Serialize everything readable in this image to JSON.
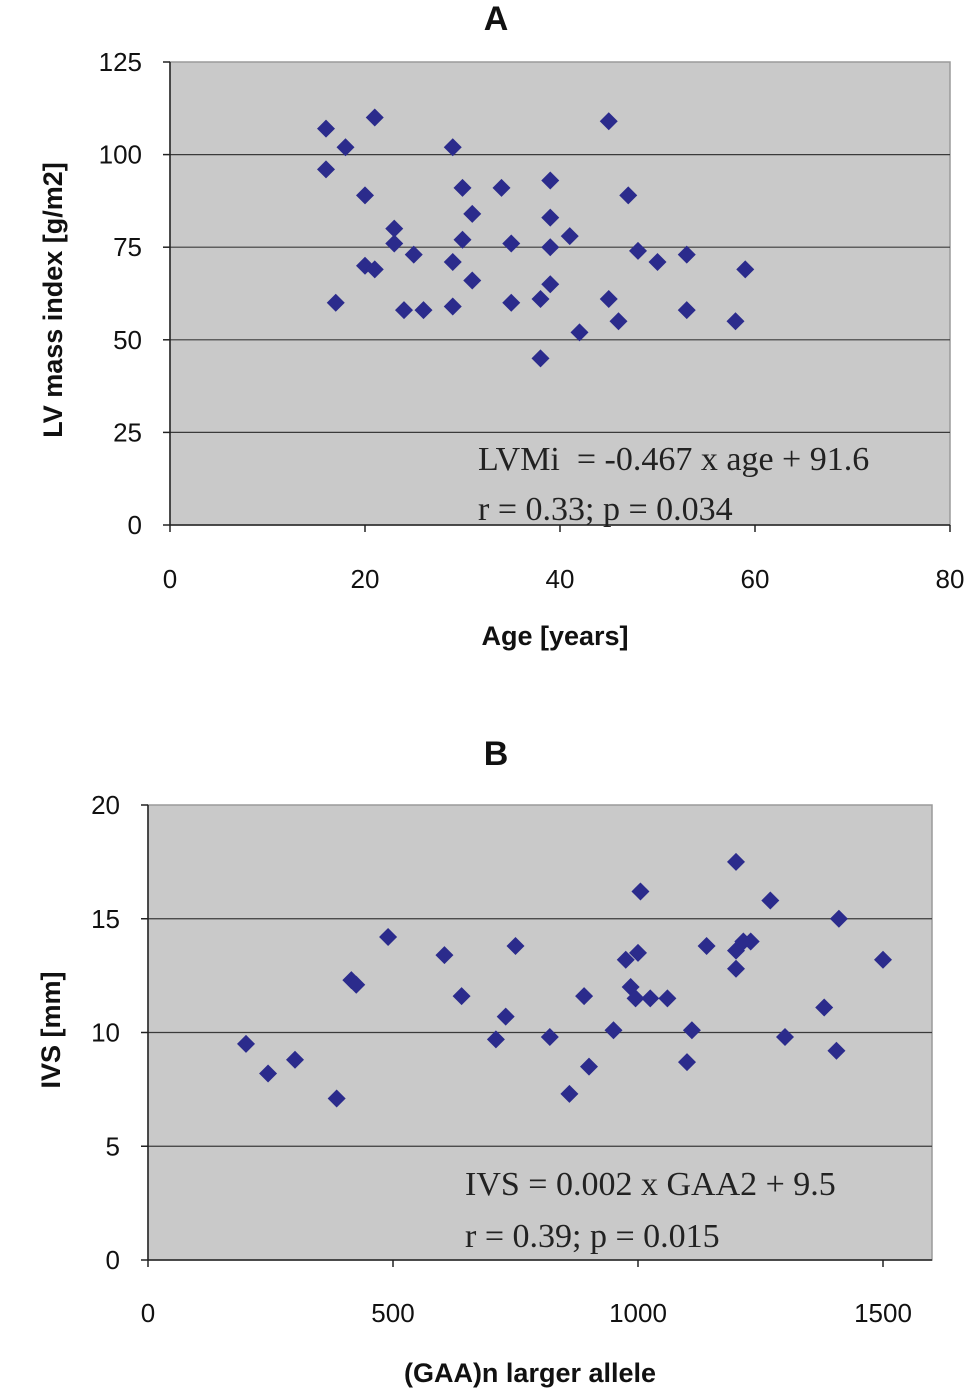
{
  "chart_data": [
    {
      "type": "scatter",
      "title": "A",
      "xlabel": "Age [years]",
      "ylabel": "LV mass index [g/m2]",
      "xlim": [
        0,
        80
      ],
      "ylim": [
        0,
        125
      ],
      "xticks": [
        "0",
        "20",
        "40",
        "60",
        "80"
      ],
      "yticks": [
        "0",
        "25",
        "50",
        "75",
        "100",
        "125"
      ],
      "grid": "horizontal",
      "annotations": [
        "LVMi  = -0.467 x age + 91.6",
        "r = 0.33; p = 0.034"
      ],
      "marker_color": "#2b2b8c",
      "background_color": "#c9c9c9",
      "points": [
        [
          16,
          107
        ],
        [
          16,
          96
        ],
        [
          18,
          102
        ],
        [
          21,
          110
        ],
        [
          17,
          60
        ],
        [
          20,
          89
        ],
        [
          20,
          70
        ],
        [
          21,
          69
        ],
        [
          23,
          80
        ],
        [
          23,
          76
        ],
        [
          25,
          73
        ],
        [
          24,
          58
        ],
        [
          26,
          58
        ],
        [
          29,
          102
        ],
        [
          30,
          91
        ],
        [
          31,
          84
        ],
        [
          30,
          77
        ],
        [
          29,
          71
        ],
        [
          31,
          66
        ],
        [
          29,
          59
        ],
        [
          34,
          91
        ],
        [
          35,
          76
        ],
        [
          35,
          60
        ],
        [
          38,
          61
        ],
        [
          38,
          45
        ],
        [
          39,
          93
        ],
        [
          39,
          83
        ],
        [
          39,
          75
        ],
        [
          39,
          65
        ],
        [
          41,
          78
        ],
        [
          42,
          52
        ],
        [
          45,
          109
        ],
        [
          47,
          89
        ],
        [
          48,
          74
        ],
        [
          45,
          61
        ],
        [
          46,
          55
        ],
        [
          50,
          71
        ],
        [
          53,
          73
        ],
        [
          53,
          58
        ],
        [
          58,
          55
        ],
        [
          59,
          69
        ]
      ]
    },
    {
      "type": "scatter",
      "title": "B",
      "xlabel": "(GAA)n larger allele",
      "ylabel": "IVS [mm]",
      "xlim": [
        0,
        1600
      ],
      "ylim": [
        0,
        20
      ],
      "xticks": [
        "0",
        "500",
        "1000",
        "1500"
      ],
      "yticks": [
        "0",
        "5",
        "10",
        "15",
        "20"
      ],
      "grid": "horizontal",
      "annotations": [
        "IVS = 0.002 x GAA2 + 9.5",
        "r = 0.39; p = 0.015"
      ],
      "marker_color": "#2b2b8c",
      "background_color": "#c9c9c9",
      "points": [
        [
          200,
          9.5
        ],
        [
          245,
          8.2
        ],
        [
          300,
          8.8
        ],
        [
          385,
          7.1
        ],
        [
          415,
          12.3
        ],
        [
          425,
          12.1
        ],
        [
          490,
          14.2
        ],
        [
          605,
          13.4
        ],
        [
          640,
          11.6
        ],
        [
          710,
          9.7
        ],
        [
          730,
          10.7
        ],
        [
          750,
          13.8
        ],
        [
          820,
          9.8
        ],
        [
          860,
          7.3
        ],
        [
          890,
          11.6
        ],
        [
          900,
          8.5
        ],
        [
          950,
          10.1
        ],
        [
          975,
          13.2
        ],
        [
          985,
          12.0
        ],
        [
          995,
          11.5
        ],
        [
          1000,
          13.5
        ],
        [
          1005,
          16.2
        ],
        [
          1025,
          11.5
        ],
        [
          1060,
          11.5
        ],
        [
          1100,
          8.7
        ],
        [
          1110,
          10.1
        ],
        [
          1140,
          13.8
        ],
        [
          1200,
          17.5
        ],
        [
          1200,
          13.6
        ],
        [
          1200,
          12.8
        ],
        [
          1215,
          14.0
        ],
        [
          1230,
          14.0
        ],
        [
          1270,
          15.8
        ],
        [
          1300,
          9.8
        ],
        [
          1380,
          11.1
        ],
        [
          1405,
          9.2
        ],
        [
          1410,
          15.0
        ],
        [
          1500,
          13.2
        ]
      ]
    }
  ]
}
